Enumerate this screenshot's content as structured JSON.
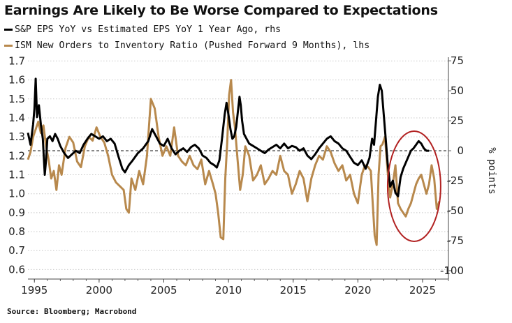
{
  "title": "Earnings Are Likely to Be Worse Compared to Expectations",
  "legend": [
    {
      "label": "S&P EPS YoY vs Estimated EPS YoY 1 Year Ago, rhs",
      "color": "#000000"
    },
    {
      "label": "ISM New Orders to Inventory Ratio (Pushed Forward 9 Months), lhs",
      "color": "#b8894d"
    }
  ],
  "source": "Source: Bloomberg; Macrobond",
  "colors": {
    "eps": "#000000",
    "ism": "#b8894d",
    "ellipse": "#b22222",
    "grid": "#c8c8c8"
  },
  "chart_data": {
    "type": "line",
    "title": "Earnings Are Likely to Be Worse Compared to Expectations",
    "x_ticks": [
      "1995",
      "2000",
      "2005",
      "2010",
      "2015",
      "2020",
      "2025"
    ],
    "xlim": [
      1994.5,
      2027.0
    ],
    "left_axis": {
      "ticks": [
        "1.7",
        "1.6",
        "1.5",
        "1.4",
        "1.3",
        "1.2",
        "1.1",
        "1.0",
        "0.9",
        "0.8",
        "0.7",
        "0.6"
      ],
      "ylim": [
        0.55,
        1.72
      ]
    },
    "right_axis": {
      "ticks": [
        "75",
        "50",
        "25",
        "0",
        "-25",
        "-50",
        "-75",
        "-100"
      ],
      "ylim": [
        -107,
        78
      ],
      "label": "% points"
    },
    "reference_line": {
      "axis": "right",
      "value": 0,
      "style": "dashed"
    },
    "annotation": {
      "type": "ellipse",
      "description": "highlight of recent divergence",
      "x_range": [
        2022.3,
        2026.4
      ]
    },
    "series": [
      {
        "name": "S&P EPS YoY vs Estimated EPS YoY 1 Year Ago",
        "axis": "right",
        "x": [
          1994.5,
          1994.7,
          1994.9,
          1995.0,
          1995.1,
          1995.2,
          1995.35,
          1995.5,
          1995.65,
          1995.8,
          1995.9,
          1996.0,
          1996.2,
          1996.4,
          1996.6,
          1996.8,
          1997.0,
          1997.3,
          1997.6,
          1997.9,
          1998.2,
          1998.5,
          1998.8,
          1999.1,
          1999.4,
          1999.7,
          2000.0,
          2000.3,
          2000.6,
          2000.9,
          2001.2,
          2001.5,
          2001.8,
          2002.0,
          2002.3,
          2002.6,
          2003.0,
          2003.4,
          2003.8,
          2004.1,
          2004.4,
          2004.7,
          2005.0,
          2005.3,
          2005.6,
          2005.9,
          2006.2,
          2006.5,
          2006.8,
          2007.1,
          2007.4,
          2007.7,
          2008.0,
          2008.3,
          2008.6,
          2008.9,
          2009.1,
          2009.3,
          2009.5,
          2009.7,
          2009.85,
          2010.0,
          2010.15,
          2010.3,
          2010.45,
          2010.6,
          2010.75,
          2010.85,
          2010.95,
          2011.05,
          2011.2,
          2011.4,
          2011.6,
          2011.9,
          2012.2,
          2012.5,
          2012.8,
          2013.1,
          2013.4,
          2013.7,
          2014.0,
          2014.3,
          2014.6,
          2014.9,
          2015.2,
          2015.5,
          2015.8,
          2016.1,
          2016.4,
          2016.7,
          2017.0,
          2017.3,
          2017.6,
          2017.9,
          2018.2,
          2018.5,
          2018.8,
          2019.1,
          2019.4,
          2019.7,
          2020.0,
          2020.3,
          2020.6,
          2020.9,
          2021.1,
          2021.25,
          2021.4,
          2021.55,
          2021.7,
          2021.85,
          2022.0,
          2022.15,
          2022.3,
          2022.5,
          2022.7,
          2022.9,
          2023.1,
          2023.3,
          2023.5,
          2023.7,
          2023.9,
          2024.1,
          2024.3,
          2024.5,
          2024.7,
          2024.9,
          2025.1,
          2025.3,
          2025.5
        ],
        "values": [
          15,
          5,
          22,
          35,
          60,
          28,
          38,
          22,
          10,
          -20,
          -8,
          10,
          12,
          8,
          14,
          10,
          4,
          -2,
          -6,
          -3,
          0,
          -2,
          5,
          10,
          14,
          12,
          10,
          12,
          8,
          10,
          6,
          -5,
          -15,
          -18,
          -12,
          -8,
          -2,
          2,
          8,
          18,
          12,
          6,
          4,
          10,
          2,
          -3,
          0,
          2,
          -1,
          3,
          5,
          2,
          -4,
          -6,
          -10,
          -12,
          -14,
          -8,
          10,
          30,
          40,
          30,
          18,
          10,
          12,
          20,
          35,
          45,
          38,
          25,
          14,
          10,
          6,
          4,
          2,
          0,
          -2,
          1,
          3,
          5,
          2,
          6,
          2,
          4,
          3,
          0,
          2,
          -4,
          -7,
          -3,
          2,
          6,
          10,
          12,
          8,
          6,
          2,
          0,
          -5,
          -10,
          -12,
          -8,
          -15,
          -6,
          10,
          5,
          25,
          45,
          55,
          50,
          30,
          10,
          -10,
          -30,
          -25,
          -35,
          -38,
          -22,
          -15,
          -10,
          -5,
          0,
          2,
          5,
          8,
          6,
          2,
          0,
          0
        ]
      },
      {
        "name": "ISM New Orders to Inventory Ratio (Pushed Forward 9 Months)",
        "axis": "left",
        "x": [
          1994.5,
          1994.7,
          1994.9,
          1995.1,
          1995.3,
          1995.5,
          1995.7,
          1995.9,
          1996.1,
          1996.3,
          1996.5,
          1996.7,
          1996.9,
          1997.1,
          1997.4,
          1997.7,
          1998.0,
          1998.3,
          1998.6,
          1998.9,
          1999.2,
          1999.5,
          1999.8,
          2000.1,
          2000.4,
          2000.7,
          2001.0,
          2001.3,
          2001.6,
          2001.9,
          2002.1,
          2002.3,
          2002.5,
          2002.8,
          2003.1,
          2003.4,
          2003.7,
          2004.0,
          2004.3,
          2004.6,
          2004.9,
          2005.2,
          2005.5,
          2005.8,
          2006.1,
          2006.4,
          2006.7,
          2007.0,
          2007.3,
          2007.6,
          2007.9,
          2008.2,
          2008.5,
          2008.8,
          2009.0,
          2009.2,
          2009.4,
          2009.6,
          2009.75,
          2009.9,
          2010.05,
          2010.2,
          2010.35,
          2010.5,
          2010.7,
          2010.9,
          2011.1,
          2011.3,
          2011.6,
          2011.9,
          2012.2,
          2012.5,
          2012.8,
          2013.1,
          2013.4,
          2013.7,
          2014.0,
          2014.3,
          2014.6,
          2014.9,
          2015.2,
          2015.5,
          2015.8,
          2016.1,
          2016.4,
          2016.7,
          2017.0,
          2017.3,
          2017.6,
          2017.9,
          2018.2,
          2018.5,
          2018.8,
          2019.1,
          2019.4,
          2019.7,
          2020.0,
          2020.3,
          2020.55,
          2020.8,
          2021.0,
          2021.15,
          2021.3,
          2021.45,
          2021.6,
          2021.75,
          2021.9,
          2022.1,
          2022.3,
          2022.5,
          2022.7,
          2022.9,
          2023.1,
          2023.3,
          2023.5,
          2023.7,
          2023.9,
          2024.1,
          2024.3,
          2024.5,
          2024.7,
          2024.9,
          2025.1,
          2025.3,
          2025.5,
          2025.7,
          2025.9,
          2026.1,
          2026.3
        ],
        "values": [
          1.18,
          1.22,
          1.3,
          1.34,
          1.38,
          1.32,
          1.36,
          1.25,
          1.18,
          1.08,
          1.12,
          1.02,
          1.15,
          1.1,
          1.24,
          1.3,
          1.27,
          1.17,
          1.14,
          1.25,
          1.3,
          1.28,
          1.35,
          1.3,
          1.27,
          1.2,
          1.1,
          1.06,
          1.04,
          1.02,
          0.92,
          0.9,
          1.08,
          1.02,
          1.12,
          1.05,
          1.2,
          1.5,
          1.45,
          1.3,
          1.2,
          1.25,
          1.2,
          1.35,
          1.2,
          1.17,
          1.15,
          1.2,
          1.15,
          1.13,
          1.18,
          1.05,
          1.12,
          1.05,
          1.0,
          0.9,
          0.77,
          0.76,
          1.08,
          1.27,
          1.52,
          1.6,
          1.43,
          1.35,
          1.18,
          1.02,
          1.1,
          1.25,
          1.2,
          1.07,
          1.1,
          1.15,
          1.05,
          1.08,
          1.12,
          1.1,
          1.2,
          1.12,
          1.1,
          1.0,
          1.05,
          1.12,
          1.08,
          0.96,
          1.08,
          1.15,
          1.2,
          1.18,
          1.25,
          1.22,
          1.16,
          1.12,
          1.15,
          1.07,
          1.1,
          1.0,
          0.95,
          1.1,
          1.15,
          1.14,
          1.12,
          0.95,
          0.78,
          0.73,
          1.1,
          1.25,
          1.26,
          1.3,
          1.12,
          0.98,
          1.05,
          1.15,
          0.95,
          0.92,
          0.9,
          0.88,
          0.92,
          0.95,
          1.0,
          1.05,
          1.08,
          1.1,
          1.05,
          1.0,
          1.05,
          1.15,
          1.08,
          0.92,
          0.96
        ]
      }
    ]
  }
}
